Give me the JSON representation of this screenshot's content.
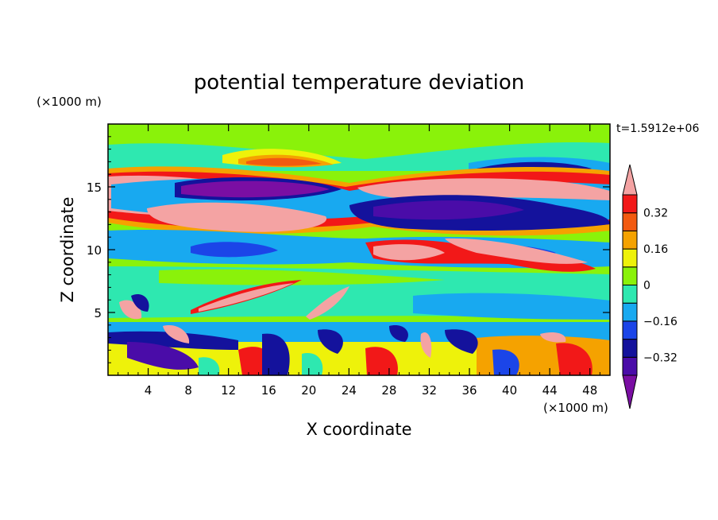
{
  "chart_data": {
    "type": "heatmap",
    "title": "potential temperature deviation",
    "xlabel": "X coordinate",
    "ylabel": "Z coordinate",
    "x_unit": "(×1000 m)",
    "y_unit": "(×1000 m)",
    "time_label": "t=1.5912e+06",
    "xlim": [
      0,
      50
    ],
    "ylim": [
      0,
      20
    ],
    "x_ticks": [
      4,
      8,
      12,
      16,
      20,
      24,
      28,
      32,
      36,
      40,
      44,
      48
    ],
    "y_ticks": [
      5,
      10,
      15
    ],
    "colorbar": {
      "levels": [
        -0.4,
        -0.32,
        -0.24,
        -0.16,
        -0.08,
        0,
        0.08,
        0.16,
        0.24,
        0.32,
        0.4
      ],
      "tick_labels": [
        "0.32",
        "0.16",
        "0",
        "−0.16",
        "−0.32"
      ],
      "colors": [
        "#7a0ea3",
        "#4a0ca8",
        "#14129c",
        "#1b45e8",
        "#18a9f0",
        "#2ee8b0",
        "#8af20a",
        "#eef20a",
        "#f5a200",
        "#f25a10",
        "#f21818",
        "#f4a3a3"
      ],
      "extend": "both"
    }
  }
}
